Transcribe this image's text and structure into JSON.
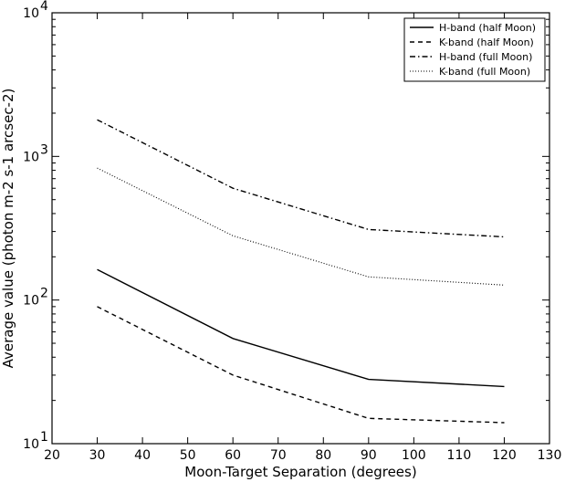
{
  "chart_data": {
    "type": "line",
    "title": "",
    "xlabel": "Moon-Target Separation (degrees)",
    "ylabel": "Average value (photon m-2 s-1 arcsec-2)",
    "xlim": [
      20,
      130
    ],
    "ylim": [
      10,
      10000
    ],
    "yscale": "log",
    "grid": false,
    "legend_position": "top-right",
    "x_ticks": [
      "20",
      "30",
      "40",
      "50",
      "60",
      "70",
      "80",
      "90",
      "100",
      "110",
      "120",
      "130"
    ],
    "y_ticks": [
      {
        "value": 10,
        "base": "10",
        "exp": "1"
      },
      {
        "value": 100,
        "base": "10",
        "exp": "2"
      },
      {
        "value": 1000,
        "base": "10",
        "exp": "3"
      },
      {
        "value": 10000,
        "base": "10",
        "exp": "4"
      }
    ],
    "x": [
      30,
      60,
      90,
      120
    ],
    "series": [
      {
        "name": "H-band (half Moon)",
        "style": "solid",
        "color": "#000000",
        "values": [
          163,
          54,
          28,
          25
        ]
      },
      {
        "name": "K-band (half Moon)",
        "style": "dashed",
        "color": "#000000",
        "values": [
          90,
          30,
          15,
          14
        ]
      },
      {
        "name": "H-band (full Moon)",
        "style": "dashdot",
        "color": "#000000",
        "values": [
          1800,
          600,
          310,
          275
        ]
      },
      {
        "name": "K-band (full Moon)",
        "style": "dotted",
        "color": "#000000",
        "values": [
          830,
          280,
          145,
          127
        ]
      }
    ]
  }
}
